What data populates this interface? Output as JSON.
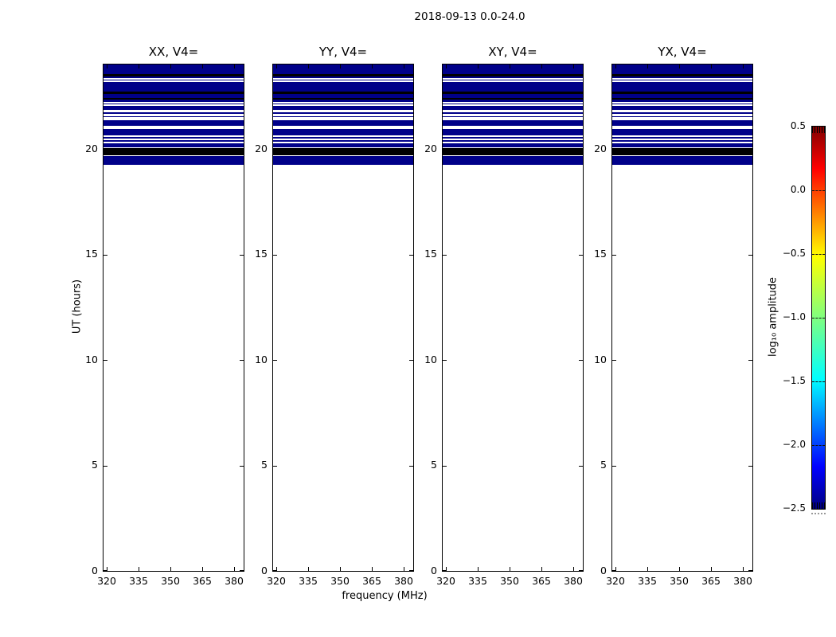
{
  "figure": {
    "title": "2018-09-13 0.0-24.0",
    "xlabel": "frequency (MHz)",
    "ylabel": "UT (hours)",
    "background": "#ffffff"
  },
  "colors": {
    "band_low": "#000089",
    "band_saturated": "#000000",
    "no_data": "#ffffff",
    "axis": "#000000"
  },
  "chart_data": {
    "type": "heatmap",
    "title": "2018-09-13 0.0-24.0",
    "panels": [
      {
        "title": "XX, V4="
      },
      {
        "title": "YY, V4="
      },
      {
        "title": "XY, V4="
      },
      {
        "title": "YX, V4="
      }
    ],
    "x": {
      "label": "frequency (MHz)",
      "tick_values": [
        320,
        335,
        350,
        365,
        380
      ],
      "tick_labels": [
        "320",
        "335",
        "350",
        "365",
        "380"
      ],
      "range": [
        318.5,
        384.5
      ]
    },
    "y": {
      "label": "UT (hours)",
      "tick_values": [
        0,
        5,
        10,
        15,
        20
      ],
      "tick_labels": [
        "0",
        "5",
        "10",
        "15",
        "20"
      ],
      "range": [
        0,
        24
      ]
    },
    "colorbar": {
      "label": "log₁₀ amplitude",
      "tick_values": [
        0.5,
        0.0,
        -0.5,
        -1.0,
        -1.5,
        -2.0,
        -2.5
      ],
      "tick_labels": [
        "0.5",
        "0.0",
        "−0.5",
        "−1.0",
        "−1.5",
        "−2.0",
        "−2.5"
      ],
      "range_top": 0.5,
      "range_bottom": -2.5,
      "colormap": "jet",
      "gradient_stops_bottom_to_top": [
        [
          "#000080",
          0
        ],
        [
          "#0000ff",
          11
        ],
        [
          "#00ffff",
          34
        ],
        [
          "#80ff80",
          50
        ],
        [
          "#ffff00",
          66
        ],
        [
          "#ff0000",
          89
        ],
        [
          "#800000",
          100
        ]
      ]
    },
    "legend_note": "navy = log10 amplitude ≈ −2.5 (scale minimum), black = saturated/flagged rows, white = no data; identical band pattern in all four panels; data present only between ≈19.25 and 24.0 UT hours",
    "bands": [
      {
        "from": 24.0,
        "to": 23.55,
        "c": "navy"
      },
      {
        "from": 23.55,
        "to": 23.44,
        "c": "black"
      },
      {
        "from": 23.44,
        "to": 23.36,
        "c": "navy"
      },
      {
        "from": 23.36,
        "to": 23.29,
        "c": "white"
      },
      {
        "from": 23.29,
        "to": 23.25,
        "c": "navy"
      },
      {
        "from": 23.25,
        "to": 23.18,
        "c": "white"
      },
      {
        "from": 23.18,
        "to": 22.73,
        "c": "navy"
      },
      {
        "from": 22.73,
        "to": 22.61,
        "c": "black"
      },
      {
        "from": 22.61,
        "to": 22.43,
        "c": "navy"
      },
      {
        "from": 22.43,
        "to": 22.35,
        "c": "black"
      },
      {
        "from": 22.35,
        "to": 22.24,
        "c": "navy"
      },
      {
        "from": 22.24,
        "to": 22.16,
        "c": "white"
      },
      {
        "from": 22.16,
        "to": 22.11,
        "c": "navy"
      },
      {
        "from": 22.11,
        "to": 22.04,
        "c": "white"
      },
      {
        "from": 22.04,
        "to": 21.86,
        "c": "navy"
      },
      {
        "from": 21.86,
        "to": 21.74,
        "c": "white"
      },
      {
        "from": 21.74,
        "to": 21.66,
        "c": "navy"
      },
      {
        "from": 21.66,
        "to": 21.55,
        "c": "white"
      },
      {
        "from": 21.55,
        "to": 21.51,
        "c": "navy"
      },
      {
        "from": 21.51,
        "to": 21.36,
        "c": "white"
      },
      {
        "from": 21.36,
        "to": 21.08,
        "c": "navy"
      },
      {
        "from": 21.08,
        "to": 20.95,
        "c": "white"
      },
      {
        "from": 20.95,
        "to": 20.63,
        "c": "navy"
      },
      {
        "from": 20.63,
        "to": 20.58,
        "c": "white"
      },
      {
        "from": 20.58,
        "to": 20.5,
        "c": "navy"
      },
      {
        "from": 20.5,
        "to": 20.42,
        "c": "white"
      },
      {
        "from": 20.42,
        "to": 20.35,
        "c": "navy"
      },
      {
        "from": 20.35,
        "to": 20.27,
        "c": "white"
      },
      {
        "from": 20.27,
        "to": 20.09,
        "c": "navy"
      },
      {
        "from": 20.09,
        "to": 20.04,
        "c": "white"
      },
      {
        "from": 20.04,
        "to": 19.68,
        "c": "black"
      },
      {
        "from": 19.68,
        "to": 19.25,
        "c": "navy"
      }
    ]
  }
}
